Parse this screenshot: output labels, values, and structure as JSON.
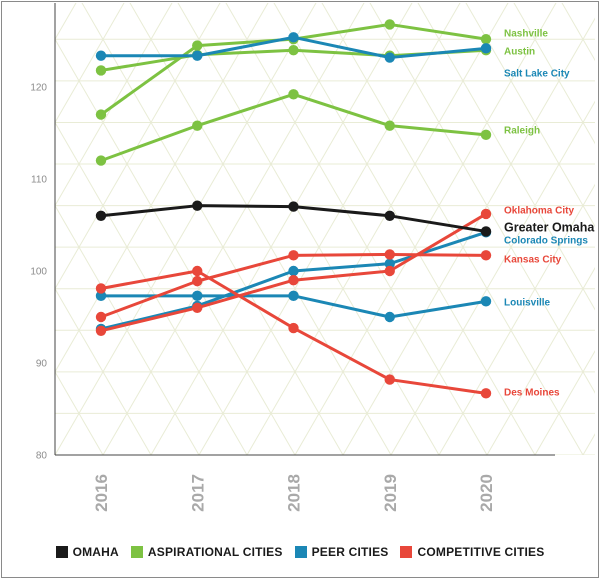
{
  "chart_data": {
    "type": "line",
    "x": [
      "2016",
      "2017",
      "2018",
      "2019",
      "2020"
    ],
    "ylim": [
      80,
      127
    ],
    "yticks": [
      80,
      90,
      100,
      110,
      120
    ],
    "grid": true,
    "series": [
      {
        "name": "Nashville",
        "group": "aspirational",
        "values": [
          117,
          124.5,
          125.2,
          126.8,
          125.2
        ]
      },
      {
        "name": "Austin",
        "group": "aspirational",
        "values": [
          121.8,
          123.5,
          124,
          123.4,
          124
        ]
      },
      {
        "name": "Salt Lake City",
        "group": "peer",
        "values": [
          123.4,
          123.4,
          125.4,
          123.2,
          124.2
        ]
      },
      {
        "name": "Raleigh",
        "group": "aspirational",
        "values": [
          112,
          115.8,
          119.2,
          115.8,
          114.8
        ]
      },
      {
        "name": "Greater Omaha",
        "group": "omaha",
        "values": [
          106,
          107.1,
          107,
          106,
          104.3
        ]
      },
      {
        "name": "Oklahoma City",
        "group": "competitive",
        "values": [
          93.5,
          96,
          99,
          100,
          106.2
        ]
      },
      {
        "name": "Colorado Springs",
        "group": "peer",
        "values": [
          93.7,
          96.2,
          100,
          100.8,
          104.2
        ]
      },
      {
        "name": "Kansas City",
        "group": "competitive",
        "values": [
          95,
          98.9,
          101.7,
          101.8,
          101.7
        ]
      },
      {
        "name": "Louisville",
        "group": "peer",
        "values": [
          97.3,
          97.3,
          97.3,
          95,
          96.7
        ]
      },
      {
        "name": "Des Moines",
        "group": "competitive",
        "values": [
          98.1,
          100,
          93.8,
          88.2,
          86.7
        ]
      }
    ],
    "legend_position": "bottom",
    "legend": [
      {
        "group": "omaha",
        "label": "OMAHA"
      },
      {
        "group": "aspirational",
        "label": "ASPIRATIONAL CITIES"
      },
      {
        "group": "peer",
        "label": "PEER CITIES"
      },
      {
        "group": "competitive",
        "label": "COMPETITIVE CITIES"
      }
    ]
  },
  "colors": {
    "omaha": "#1a1a1a",
    "aspirational": "#7dc242",
    "peer": "#1b87b5",
    "competitive": "#e8473a",
    "grid": "#e9ecd6",
    "axis": "#444444"
  }
}
